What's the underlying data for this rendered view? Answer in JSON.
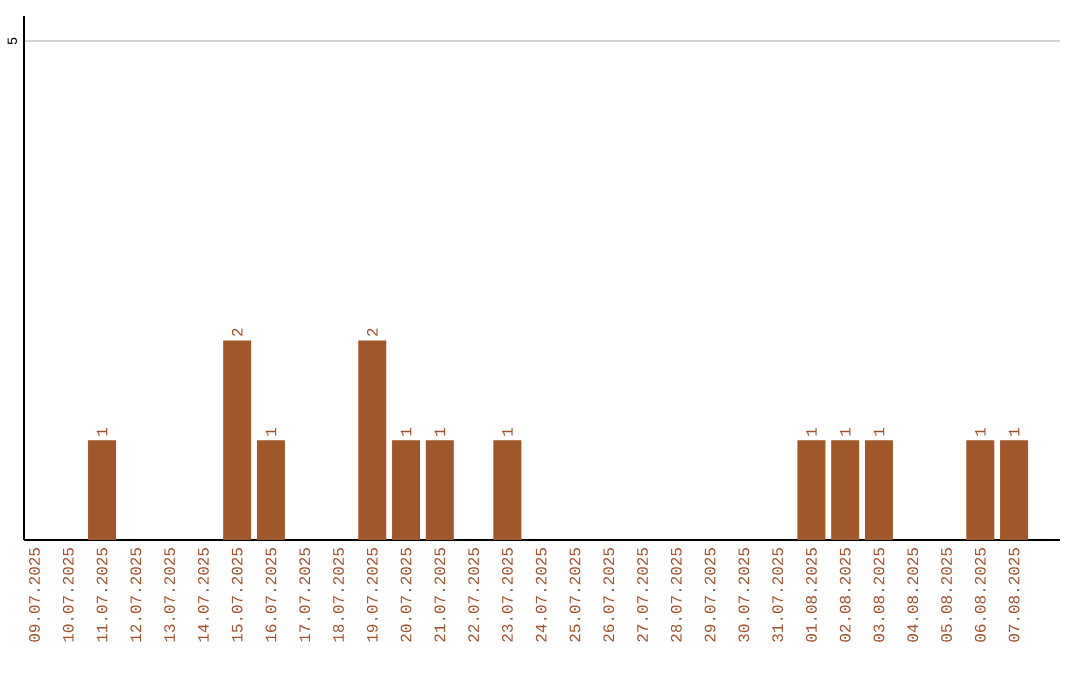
{
  "chart_data": {
    "type": "bar",
    "categories": [
      "09.07.2025",
      "10.07.2025",
      "11.07.2025",
      "12.07.2025",
      "13.07.2025",
      "14.07.2025",
      "15.07.2025",
      "16.07.2025",
      "17.07.2025",
      "18.07.2025",
      "19.07.2025",
      "20.07.2025",
      "21.07.2025",
      "22.07.2025",
      "23.07.2025",
      "24.07.2025",
      "25.07.2025",
      "26.07.2025",
      "27.07.2025",
      "28.07.2025",
      "29.07.2025",
      "30.07.2025",
      "31.07.2025",
      "01.08.2025",
      "02.08.2025",
      "03.08.2025",
      "04.08.2025",
      "05.08.2025",
      "06.08.2025",
      "07.08.2025"
    ],
    "values": [
      0,
      0,
      1,
      0,
      0,
      0,
      2,
      1,
      0,
      0,
      2,
      1,
      1,
      0,
      1,
      0,
      0,
      0,
      0,
      0,
      0,
      0,
      0,
      1,
      1,
      1,
      0,
      0,
      1,
      1
    ],
    "value_labels": [
      null,
      null,
      "1",
      null,
      null,
      null,
      "2",
      "1",
      null,
      null,
      "2",
      "1",
      "1",
      null,
      "1",
      null,
      null,
      null,
      null,
      null,
      null,
      null,
      null,
      "1",
      "1",
      "1",
      null,
      null,
      "1",
      "1"
    ],
    "color": "#a0582a",
    "ylim": [
      0,
      5.25
    ],
    "yticks": [
      5
    ],
    "grid": "y"
  }
}
